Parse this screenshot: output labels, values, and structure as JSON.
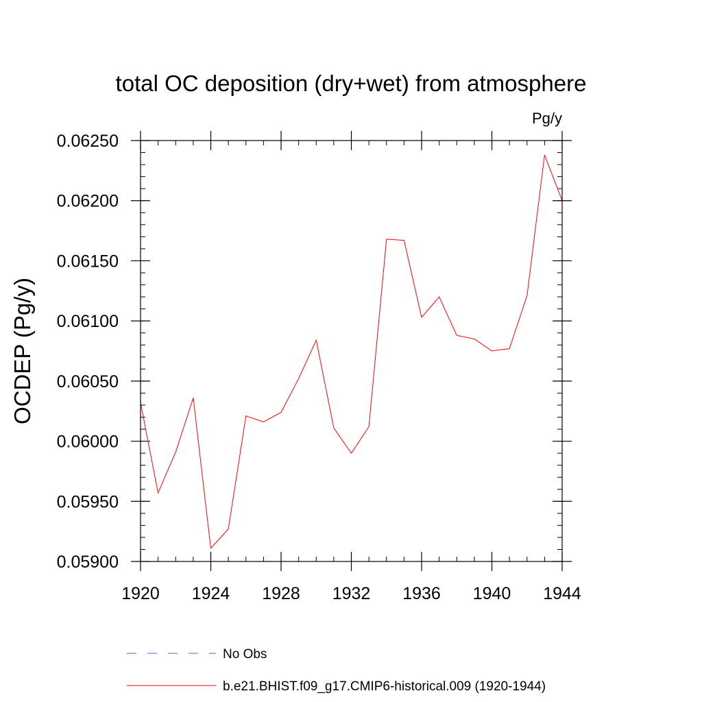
{
  "chart_data": {
    "type": "line",
    "title": "total OC deposition (dry+wet) from atmosphere",
    "units_label": "Pg/y",
    "xlabel": "",
    "ylabel": "OCDEP  (Pg/y)",
    "xlim": [
      1920,
      1944
    ],
    "ylim": [
      0.059,
      0.0625
    ],
    "x_ticks": [
      "1920",
      "1924",
      "1928",
      "1932",
      "1936",
      "1940",
      "1944"
    ],
    "x_tick_values": [
      1920,
      1924,
      1928,
      1932,
      1936,
      1940,
      1944
    ],
    "y_ticks": [
      "0.05900",
      "0.05950",
      "0.06000",
      "0.06050",
      "0.06100",
      "0.06150",
      "0.06200",
      "0.06250"
    ],
    "y_tick_values": [
      0.059,
      0.0595,
      0.06,
      0.0605,
      0.061,
      0.0615,
      0.062,
      0.0625
    ],
    "series": [
      {
        "name": "b.e21.BHIST.f09_g17.CMIP6-historical.009 (1920-1944)",
        "color": "#ff0000",
        "style": "solid",
        "x": [
          1920,
          1921,
          1922,
          1923,
          1924,
          1925,
          1926,
          1927,
          1928,
          1929,
          1930,
          1931,
          1932,
          1933,
          1934,
          1935,
          1936,
          1937,
          1938,
          1939,
          1940,
          1941,
          1942,
          1943,
          1944
        ],
        "values": [
          0.06032,
          0.05957,
          0.05991,
          0.06036,
          0.05911,
          0.05927,
          0.06021,
          0.06016,
          0.06024,
          0.06052,
          0.06084,
          0.06011,
          0.0599,
          0.06012,
          0.06168,
          0.06167,
          0.06103,
          0.0612,
          0.06088,
          0.06085,
          0.06075,
          0.06077,
          0.06121,
          0.06238,
          0.062
        ]
      }
    ],
    "legend": [
      {
        "label": "No Obs",
        "color": "#6a5acd",
        "style": "dashed"
      },
      {
        "label": "b.e21.BHIST.f09_g17.CMIP6-historical.009 (1920-1944)",
        "color": "#ff0000",
        "style": "solid"
      }
    ]
  }
}
